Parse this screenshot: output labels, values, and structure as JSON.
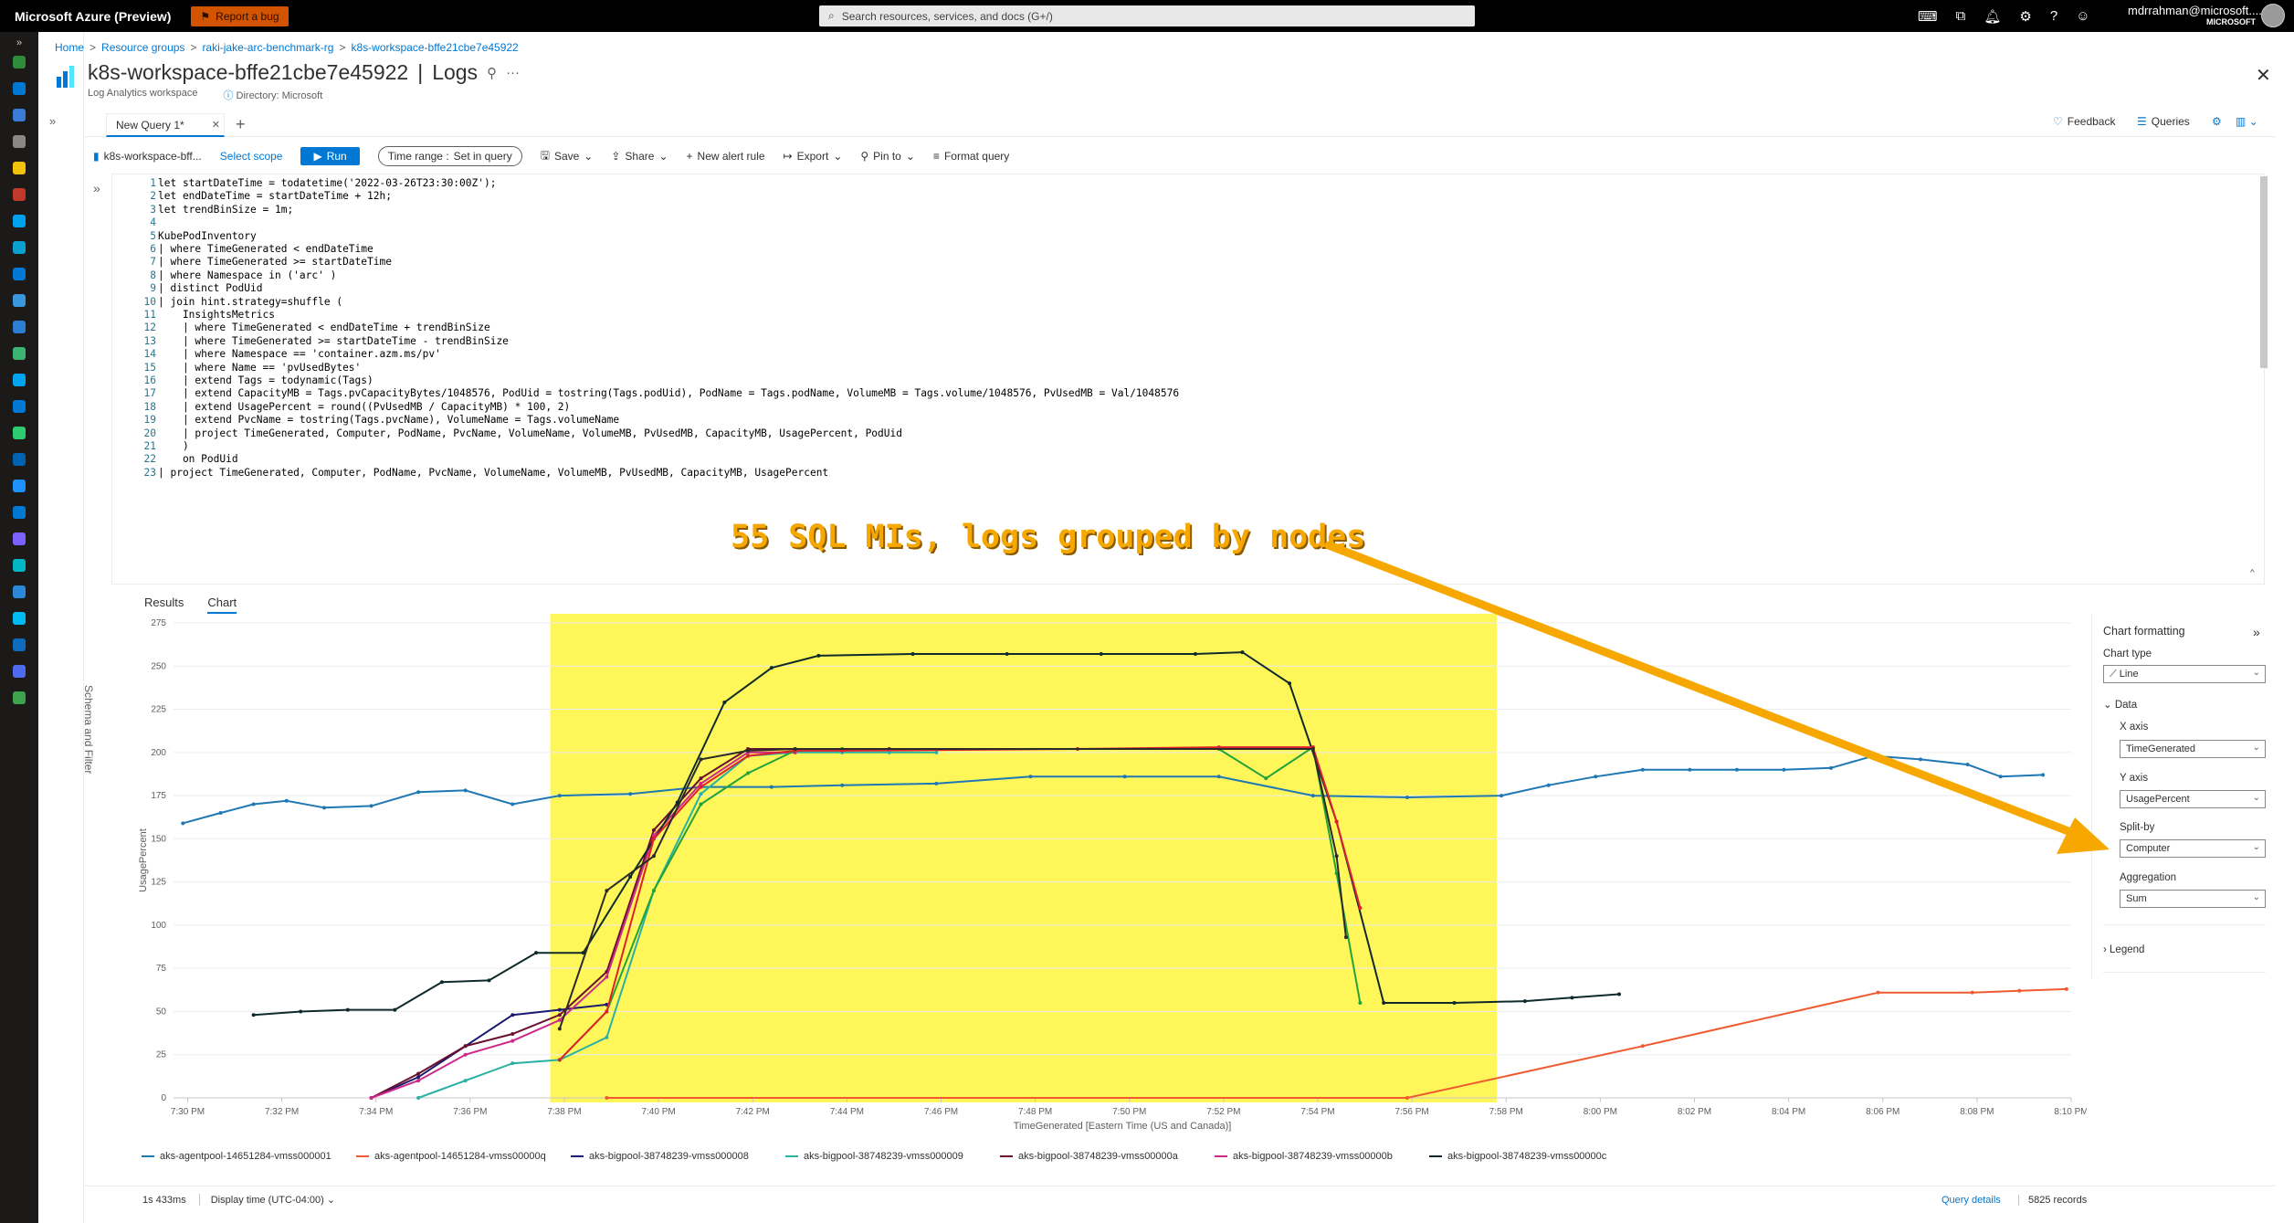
{
  "topbar": {
    "brand": "Microsoft Azure (Preview)",
    "bug_label": "Report a bug",
    "search_placeholder": "Search resources, services, and docs (G+/)",
    "user_name": "mdrrahman@microsoft....",
    "user_org": "MICROSOFT"
  },
  "breadcrumb": [
    "Home",
    "Resource groups",
    "raki-jake-arc-benchmark-rg",
    "k8s-workspace-bffe21cbe7e45922"
  ],
  "resource": {
    "name": "k8s-workspace-bffe21cbe7e45922",
    "section": "Logs",
    "type": "Log Analytics workspace",
    "directory": "Directory: Microsoft"
  },
  "query_tab": {
    "label": "New Query 1*"
  },
  "top_actions": {
    "feedback": "Feedback",
    "queries": "Queries"
  },
  "toolbar": {
    "scope": "k8s-workspace-bff...",
    "select_scope": "Select scope",
    "run": "Run",
    "time_range_label": "Time range :",
    "time_range_value": "Set in query",
    "save": "Save",
    "share": "Share",
    "new_alert": "New alert rule",
    "export": "Export",
    "pin_to": "Pin to",
    "format": "Format query"
  },
  "schema_label": "Schema and Filter",
  "code": [
    "let startDateTime = todatetime('2022-03-26T23:30:00Z');",
    "let endDateTime = startDateTime + 12h;",
    "let trendBinSize = 1m;",
    "",
    "KubePodInventory",
    "| where TimeGenerated < endDateTime",
    "| where TimeGenerated >= startDateTime",
    "| where Namespace in ('arc' )",
    "| distinct PodUid",
    "| join hint.strategy=shuffle (",
    "    InsightsMetrics",
    "    | where TimeGenerated < endDateTime + trendBinSize",
    "    | where TimeGenerated >= startDateTime - trendBinSize",
    "    | where Namespace == 'container.azm.ms/pv'",
    "    | where Name == 'pvUsedBytes'",
    "    | extend Tags = todynamic(Tags)",
    "    | extend CapacityMB = Tags.pvCapacityBytes/1048576, PodUid = tostring(Tags.podUid), PodName = Tags.podName, VolumeMB = Tags.volume/1048576, PvUsedMB = Val/1048576",
    "    | extend UsagePercent = round((PvUsedMB / CapacityMB) * 100, 2)",
    "    | extend PvcName = tostring(Tags.pvcName), VolumeName = Tags.volumeName",
    "    | project TimeGenerated, Computer, PodName, PvcName, VolumeName, VolumeMB, PvUsedMB, CapacityMB, UsagePercent, PodUid",
    "    )",
    "    on PodUid",
    "| project TimeGenerated, Computer, PodName, PvcName, VolumeName, VolumeMB, PvUsedMB, CapacityMB, UsagePercent"
  ],
  "results_tabs": {
    "results": "Results",
    "chart": "Chart"
  },
  "annotation": "55 SQL MIs, logs grouped by nodes",
  "formatting": {
    "title": "Chart formatting",
    "chart_type_label": "Chart type",
    "chart_type": "Line",
    "data_label": "Data",
    "xaxis_label": "X axis",
    "xaxis": "TimeGenerated",
    "yaxis_label": "Y axis",
    "yaxis": "UsagePercent",
    "splitby_label": "Split-by",
    "splitby": "Computer",
    "agg_label": "Aggregation",
    "agg": "Sum",
    "legend_label": "Legend"
  },
  "status": {
    "duration": "1s 433ms",
    "display_time": "Display time (UTC-04:00)",
    "query_details": "Query details",
    "records": "5825 records"
  },
  "chart_data": {
    "type": "line",
    "xlabel": "TimeGenerated [Eastern Time (US and Canada)]",
    "ylabel": "UsagePercent",
    "ylim": [
      0,
      275
    ],
    "yticks": [
      "0",
      "25",
      "50",
      "75",
      "100",
      "125",
      "150",
      "175",
      "200",
      "225",
      "250",
      "275"
    ],
    "xticks": [
      "7:30 PM",
      "7:32 PM",
      "7:34 PM",
      "7:36 PM",
      "7:38 PM",
      "7:40 PM",
      "7:42 PM",
      "7:44 PM",
      "7:46 PM",
      "7:48 PM",
      "7:50 PM",
      "7:52 PM",
      "7:54 PM",
      "7:56 PM",
      "7:58 PM",
      "8:00 PM",
      "8:02 PM",
      "8:04 PM",
      "8:06 PM",
      "8:08 PM",
      "8:10 PM"
    ],
    "xrange_minutes": [
      29.7,
      70.0
    ],
    "highlight_minutes": [
      37.7,
      57.8
    ],
    "series": [
      {
        "name": "aks-agentpool-14651284-vmss000001",
        "color": "#1f77b4",
        "points": [
          [
            29.9,
            159
          ],
          [
            30.7,
            165
          ],
          [
            31.4,
            170
          ],
          [
            32.1,
            172
          ],
          [
            32.9,
            168
          ],
          [
            33.9,
            169
          ],
          [
            34.9,
            177
          ],
          [
            35.9,
            178
          ],
          [
            36.9,
            170
          ],
          [
            37.9,
            175
          ],
          [
            39.4,
            176
          ],
          [
            40.9,
            180
          ],
          [
            42.4,
            180
          ],
          [
            43.9,
            181
          ],
          [
            45.9,
            182
          ],
          [
            47.9,
            186
          ],
          [
            49.9,
            186
          ],
          [
            51.9,
            186
          ],
          [
            53.9,
            175
          ],
          [
            55.9,
            174
          ],
          [
            57.9,
            175
          ],
          [
            58.9,
            181
          ],
          [
            59.9,
            186
          ],
          [
            60.9,
            190
          ],
          [
            61.9,
            190
          ],
          [
            62.9,
            190
          ],
          [
            63.9,
            190
          ],
          [
            64.9,
            191
          ],
          [
            65.8,
            198
          ],
          [
            66.8,
            196
          ],
          [
            67.8,
            193
          ],
          [
            68.5,
            186
          ],
          [
            69.4,
            187
          ]
        ]
      },
      {
        "name": "aks-agentpool-14651284-vmss00000q",
        "color": "#f05a30",
        "points": [
          [
            38.9,
            0
          ],
          [
            55.9,
            0
          ],
          [
            60.9,
            30
          ],
          [
            65.9,
            61
          ],
          [
            67.9,
            61
          ],
          [
            68.9,
            62
          ],
          [
            69.9,
            63
          ]
        ]
      },
      {
        "name": "aks-bigpool-38748239-vmss000008",
        "color": "#1a1a6e",
        "points": [
          [
            33.9,
            0
          ],
          [
            34.9,
            12
          ],
          [
            35.9,
            30
          ],
          [
            36.9,
            48
          ],
          [
            37.9,
            51
          ],
          [
            38.9,
            54
          ]
        ]
      },
      {
        "name": "aks-bigpool-38748239-vmss000009",
        "color": "#2ab0a5",
        "points": [
          [
            34.9,
            0
          ],
          [
            35.9,
            10
          ],
          [
            36.9,
            20
          ],
          [
            37.9,
            22
          ],
          [
            38.9,
            35
          ],
          [
            39.9,
            120
          ],
          [
            40.9,
            176
          ],
          [
            41.9,
            198
          ],
          [
            42.9,
            200
          ],
          [
            43.9,
            200
          ],
          [
            44.9,
            200
          ],
          [
            45.9,
            200
          ]
        ]
      },
      {
        "name": "aks-bigpool-38748239-vmss00000a",
        "color": "#6a0f2e",
        "points": [
          [
            33.9,
            0
          ],
          [
            34.9,
            14
          ],
          [
            35.9,
            30
          ],
          [
            36.9,
            37
          ],
          [
            37.9,
            48
          ],
          [
            38.9,
            73
          ],
          [
            39.9,
            155
          ],
          [
            40.9,
            185
          ],
          [
            41.9,
            202
          ],
          [
            42.9,
            202
          ],
          [
            43.9,
            202
          ],
          [
            44.9,
            202
          ]
        ]
      },
      {
        "name": "aks-bigpool-38748239-vmss00000b",
        "color": "#cc2a8a",
        "points": [
          [
            33.9,
            0
          ],
          [
            34.9,
            10
          ],
          [
            35.9,
            25
          ],
          [
            36.9,
            33
          ],
          [
            37.9,
            45
          ],
          [
            38.9,
            70
          ],
          [
            39.9,
            152
          ],
          [
            40.9,
            182
          ],
          [
            41.9,
            200
          ],
          [
            42.9,
            200
          ]
        ]
      },
      {
        "name": "aks-bigpool-38748239-vmss00000c",
        "color": "#0f2a2a",
        "points": [
          [
            31.4,
            48
          ],
          [
            32.4,
            50
          ],
          [
            33.4,
            51
          ],
          [
            34.4,
            51
          ],
          [
            35.4,
            67
          ],
          [
            36.4,
            68
          ],
          [
            37.4,
            84
          ],
          [
            38.4,
            84
          ],
          [
            39.4,
            128
          ],
          [
            40.4,
            171
          ],
          [
            41.4,
            229
          ],
          [
            42.4,
            249
          ],
          [
            43.4,
            256
          ],
          [
            45.4,
            257
          ],
          [
            47.4,
            257
          ],
          [
            49.4,
            257
          ],
          [
            51.4,
            257
          ],
          [
            52.4,
            258
          ],
          [
            53.4,
            240
          ],
          [
            54.4,
            160
          ],
          [
            55.4,
            55
          ],
          [
            56.9,
            55
          ],
          [
            58.4,
            56
          ],
          [
            59.4,
            58
          ],
          [
            60.4,
            60
          ]
        ]
      },
      {
        "name": "",
        "color": "#22a33a",
        "points": [
          [
            37.9,
            22
          ],
          [
            38.9,
            50
          ],
          [
            39.9,
            120
          ],
          [
            40.9,
            170
          ],
          [
            41.9,
            188
          ],
          [
            42.9,
            201
          ],
          [
            43.9,
            202
          ],
          [
            48.9,
            202
          ],
          [
            51.9,
            202
          ],
          [
            52.9,
            185
          ],
          [
            53.9,
            203
          ],
          [
            54.4,
            130
          ],
          [
            54.9,
            55
          ]
        ]
      },
      {
        "name": "",
        "color": "#e0202a",
        "points": [
          [
            37.9,
            22
          ],
          [
            38.9,
            50
          ],
          [
            39.9,
            150
          ],
          [
            40.9,
            180
          ],
          [
            41.9,
            198
          ],
          [
            42.9,
            201
          ],
          [
            43.9,
            201
          ],
          [
            48.9,
            202
          ],
          [
            51.9,
            203
          ],
          [
            53.9,
            203
          ],
          [
            54.4,
            160
          ],
          [
            54.9,
            110
          ]
        ]
      },
      {
        "name": "",
        "color": "#2a2a2a",
        "points": [
          [
            37.9,
            40
          ],
          [
            38.9,
            120
          ],
          [
            39.9,
            140
          ],
          [
            40.9,
            196
          ],
          [
            41.9,
            201
          ],
          [
            42.9,
            202
          ],
          [
            53.9,
            202
          ],
          [
            54.4,
            140
          ],
          [
            54.6,
            93
          ]
        ]
      }
    ]
  }
}
